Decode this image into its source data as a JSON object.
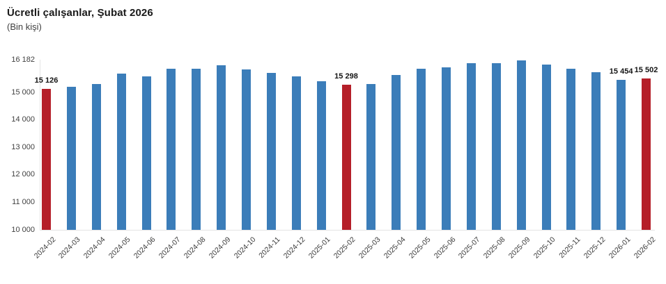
{
  "chart_data": {
    "type": "bar",
    "title": "Ücretli çalışanlar, Şubat 2026",
    "subtitle": "(Bin kişi)",
    "categories": [
      "2024-02",
      "2024-03",
      "2024-04",
      "2024-05",
      "2024-06",
      "2024-07",
      "2024-08",
      "2024-09",
      "2024-10",
      "2024-11",
      "2024-12",
      "2025-01",
      "2025-02",
      "2025-03",
      "2025-04",
      "2025-05",
      "2025-06",
      "2025-07",
      "2025-08",
      "2025-09",
      "2025-10",
      "2025-11",
      "2025-12",
      "2026-01",
      "2026-02"
    ],
    "values": [
      15126,
      15220,
      15300,
      15680,
      15590,
      15870,
      15880,
      15990,
      15840,
      15710,
      15590,
      15410,
      15298,
      15320,
      15640,
      15860,
      15920,
      16080,
      16060,
      16182,
      16010,
      15880,
      15750,
      15454,
      15502
    ],
    "ylim": [
      10000,
      16182
    ],
    "yticks": [
      16182,
      15000,
      14000,
      13000,
      12000,
      11000,
      10000
    ],
    "grid": false,
    "legend": "none",
    "bar_color": "#3b7db9",
    "highlight_color": "#b51f29",
    "highlighted_categories": [
      "2024-02",
      "2025-02",
      "2026-02"
    ],
    "value_label_categories": [
      "2024-02",
      "2025-02",
      "2026-01",
      "2026-02"
    ],
    "value_labels_text": {
      "2024-02": "15 126",
      "2025-02": "15 298",
      "2026-01": "15 454",
      "2026-02": "15 502"
    }
  }
}
